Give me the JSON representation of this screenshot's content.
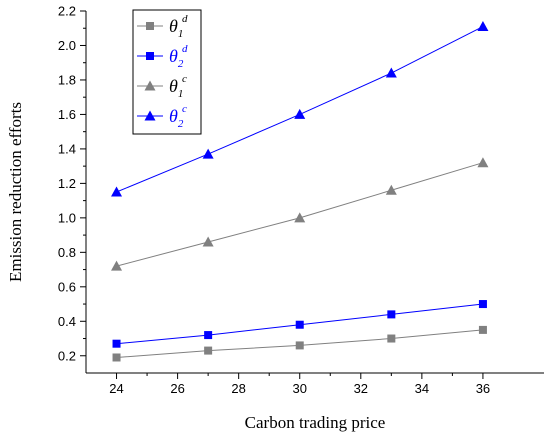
{
  "chart_data": {
    "type": "line",
    "title": "",
    "xlabel": "Carbon trading price",
    "ylabel": "Emission reduction efforts",
    "x": [
      24,
      27,
      30,
      33,
      36
    ],
    "xlim": [
      23,
      38
    ],
    "ylim": [
      0.1,
      2.2
    ],
    "xticks": [
      24,
      26,
      28,
      30,
      32,
      34,
      36
    ],
    "xtick_labels": [
      "24",
      "26",
      "28",
      "30",
      "32",
      "34",
      "36"
    ],
    "yticks": [
      0.2,
      0.4,
      0.6,
      0.8,
      1.0,
      1.2,
      1.4,
      1.6,
      1.8,
      2.0,
      2.2
    ],
    "ytick_labels": [
      "0.2",
      "0.4",
      "0.6",
      "0.8",
      "1.0",
      "1.2",
      "1.4",
      "1.6",
      "1.8",
      "2.0",
      "2.2"
    ],
    "grid": false,
    "legend_position": "top-left",
    "series": [
      {
        "name": "θ",
        "sub": "1",
        "sup": "d",
        "marker": "square",
        "color": "#808080",
        "values": [
          0.19,
          0.23,
          0.26,
          0.3,
          0.35
        ]
      },
      {
        "name": "θ",
        "sub": "2",
        "sup": "d",
        "marker": "square",
        "color": "#0000ff",
        "values": [
          0.27,
          0.32,
          0.38,
          0.44,
          0.5
        ]
      },
      {
        "name": "θ",
        "sub": "1",
        "sup": "c",
        "marker": "triangle",
        "color": "#808080",
        "values": [
          0.72,
          0.86,
          1.0,
          1.16,
          1.32
        ]
      },
      {
        "name": "θ",
        "sub": "2",
        "sup": "c",
        "marker": "triangle",
        "color": "#0000ff",
        "values": [
          1.15,
          1.37,
          1.6,
          1.84,
          2.11
        ]
      }
    ]
  }
}
